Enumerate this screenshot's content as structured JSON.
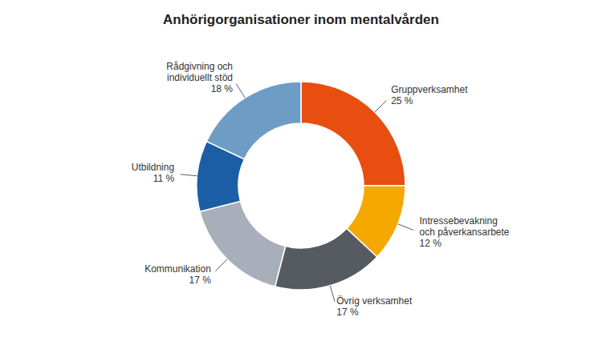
{
  "chart_data": {
    "type": "donut",
    "title": "Anhörigorganisationer inom mentalvården",
    "categories": [
      "Gruppverksamhet",
      "Intressebevakning\noch påverkansarbete",
      "Övrig verksamhet",
      "Kommunikation",
      "Utbildning",
      "Rådgivning och\nindividuellt stöd"
    ],
    "values": [
      25,
      12,
      17,
      17,
      11,
      18
    ],
    "value_labels": [
      "25 %",
      "12 %",
      "17 %",
      "17 %",
      "11 %",
      "18 %"
    ],
    "colors": [
      "#E84E0F",
      "#F5A800",
      "#555B61",
      "#A8AFBA",
      "#1B5EA6",
      "#6D9DC5"
    ],
    "data_labels": true
  }
}
